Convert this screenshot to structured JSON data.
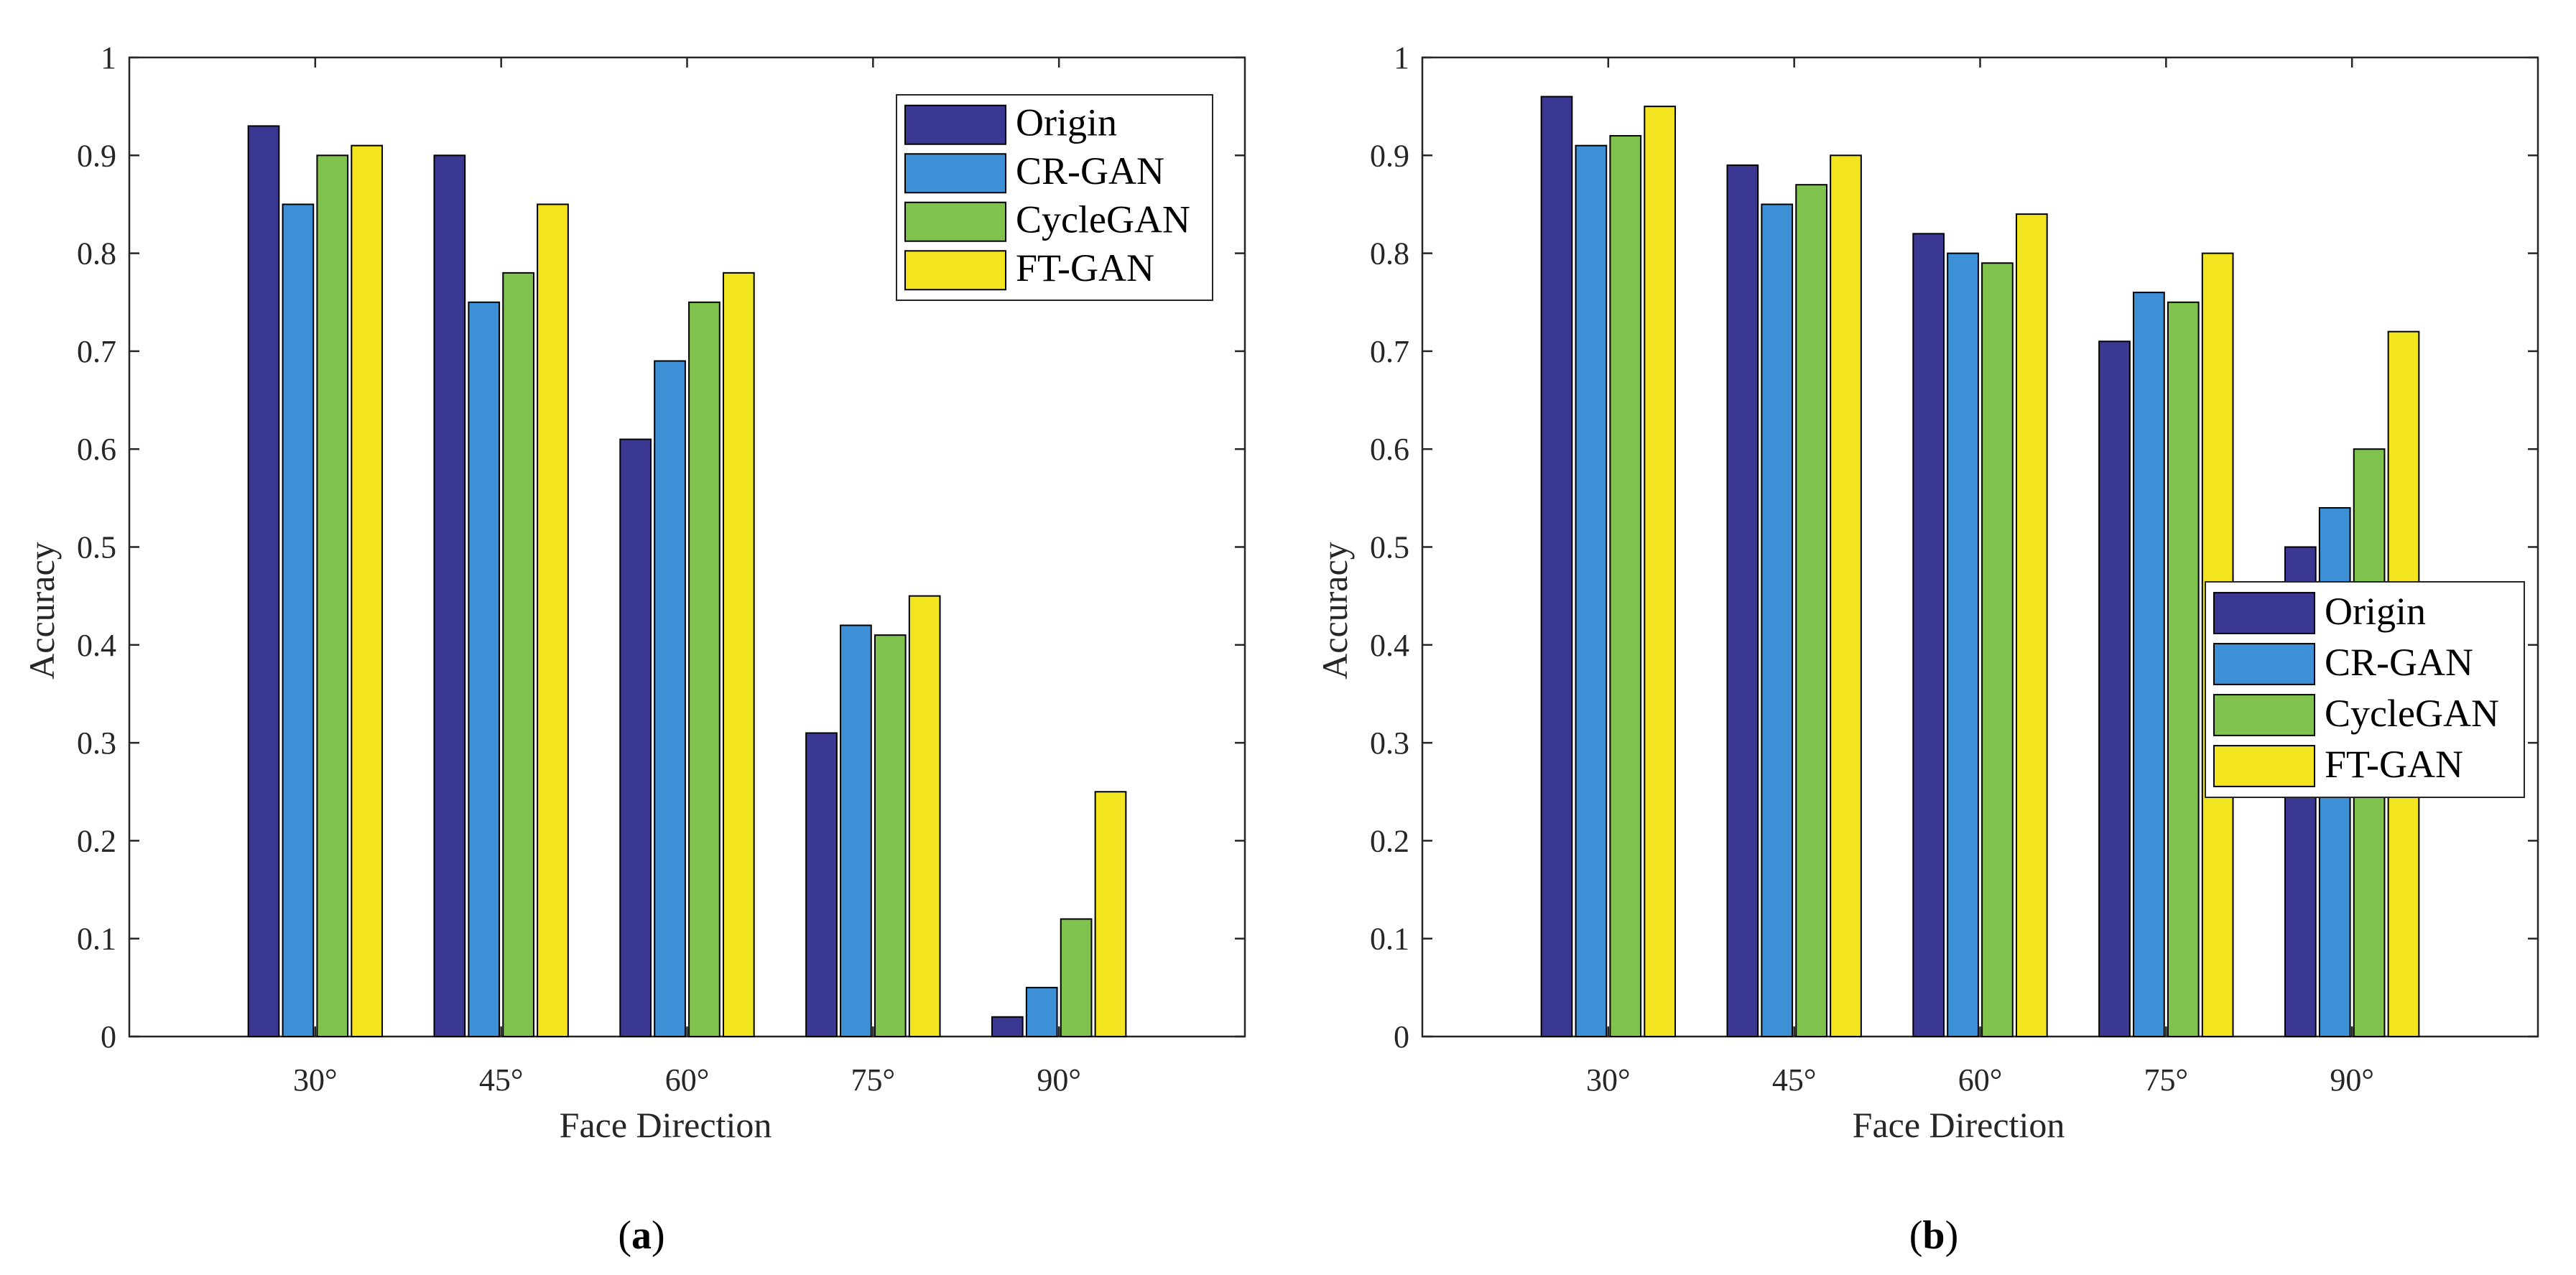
{
  "chart_data": [
    {
      "type": "bar",
      "panel": "(a)",
      "panel_letter": "a",
      "categories": [
        "30°",
        "45°",
        "60°",
        "75°",
        "90°"
      ],
      "series": [
        {
          "name": "Origin",
          "values": [
            0.93,
            0.9,
            0.61,
            0.31,
            0.02
          ]
        },
        {
          "name": "CR-GAN",
          "values": [
            0.85,
            0.75,
            0.69,
            0.42,
            0.05
          ]
        },
        {
          "name": "CycleGAN",
          "values": [
            0.9,
            0.78,
            0.75,
            0.41,
            0.12
          ]
        },
        {
          "name": "FT-GAN",
          "values": [
            0.91,
            0.85,
            0.78,
            0.45,
            0.25
          ]
        }
      ],
      "xlabel": "Face Direction",
      "ylabel": "Accuracy",
      "ylim": [
        0,
        1
      ],
      "yticks": [
        "0",
        "0.1",
        "0.2",
        "0.3",
        "0.4",
        "0.5",
        "0.6",
        "0.7",
        "0.8",
        "0.9",
        "1"
      ],
      "legend_position": "top-right"
    },
    {
      "type": "bar",
      "panel": "(b)",
      "panel_letter": "b",
      "categories": [
        "30°",
        "45°",
        "60°",
        "75°",
        "90°"
      ],
      "series": [
        {
          "name": "Origin",
          "values": [
            0.96,
            0.89,
            0.82,
            0.71,
            0.5
          ]
        },
        {
          "name": "CR-GAN",
          "values": [
            0.91,
            0.85,
            0.8,
            0.76,
            0.54
          ]
        },
        {
          "name": "CycleGAN",
          "values": [
            0.92,
            0.87,
            0.79,
            0.75,
            0.6
          ]
        },
        {
          "name": "FT-GAN",
          "values": [
            0.95,
            0.9,
            0.84,
            0.8,
            0.72
          ]
        }
      ],
      "xlabel": "Face Direction",
      "ylabel": "Accuracy",
      "ylim": [
        0,
        1
      ],
      "yticks": [
        "0",
        "0.1",
        "0.2",
        "0.3",
        "0.4",
        "0.5",
        "0.6",
        "0.7",
        "0.8",
        "0.9",
        "1"
      ],
      "legend_position": "center-right"
    }
  ],
  "colors": {
    "Origin": "#3b3893",
    "CR-GAN": "#3d8fd6",
    "CycleGAN": "#7fc24e",
    "FT-GAN": "#f2e41e"
  }
}
